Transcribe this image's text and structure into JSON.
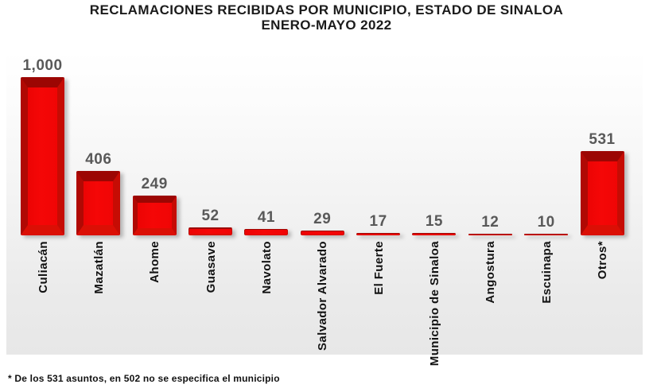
{
  "chart_data": {
    "type": "bar",
    "title": "RECLAMACIONES RECIBIDAS POR MUNICIPIO, ESTADO DE SINALOA",
    "subtitle": "ENERO-MAYO 2022",
    "categories": [
      "Culiacán",
      "Mazatlán",
      "Ahome",
      "Guasave",
      "Navolato",
      "Salvador Alvarado",
      "El Fuerte",
      "Municipio de Sinaloa",
      "Angostura",
      "Escuinapa",
      "Otros*"
    ],
    "values": [
      1000,
      406,
      249,
      52,
      41,
      29,
      17,
      15,
      12,
      10,
      531
    ],
    "value_labels": [
      "1,000",
      "406",
      "249",
      "52",
      "41",
      "29",
      "17",
      "15",
      "12",
      "10",
      "531"
    ],
    "xlabel": "",
    "ylabel": "",
    "ylim": [
      0,
      1000
    ],
    "grid": false,
    "legend": "none",
    "bar_color": "#f50707",
    "bar_bevel_top": "#9c0603",
    "bar_bevel_left": "#b00904",
    "bar_bevel_right": "#c60c04",
    "bar_bevel_bottom": "#db0f05",
    "value_label_color": "#595959",
    "category_label_color": "#121212",
    "footnote": "* De los 531 asuntos, en 502 no se especifica el municipio"
  }
}
